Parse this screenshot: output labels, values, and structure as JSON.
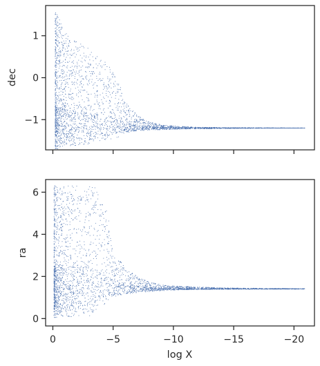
{
  "chart_data": [
    {
      "type": "scatter",
      "marker_color": "#4c72b0",
      "xlabel": "",
      "ylabel": "dec",
      "xlim": [
        0.6,
        -21.7
      ],
      "ylim": [
        -1.72,
        1.72
      ],
      "xticks": [
        0,
        -5,
        -10,
        -15,
        -20
      ],
      "xtick_labels_visible": false,
      "yticks": [
        1,
        0,
        -1
      ],
      "ytick_labels": [
        "1",
        "0",
        "−1"
      ],
      "grid": false,
      "x_range": [
        -0.2,
        -20.9
      ],
      "envelope_x": [
        -0.3,
        -0.6,
        -1.0,
        -1.5,
        -2.0,
        -2.5,
        -3.0,
        -3.5,
        -4.0,
        -4.5,
        -5.0,
        -5.5,
        -6.0,
        -7.0,
        -8.0,
        -9.0,
        -10.0,
        -12.0,
        -15.0,
        -20.8
      ],
      "envelope_upper": [
        1.55,
        1.35,
        1.1,
        0.95,
        0.85,
        0.8,
        0.7,
        0.55,
        0.45,
        0.35,
        0.15,
        -0.1,
        -0.55,
        -0.9,
        -1.05,
        -1.12,
        -1.15,
        -1.18,
        -1.19,
        -1.2
      ],
      "envelope_lower": [
        -1.35,
        -1.45,
        -1.5,
        -1.55,
        -1.5,
        -1.45,
        -1.45,
        -1.42,
        -1.4,
        -1.38,
        -1.35,
        -1.33,
        -1.3,
        -1.27,
        -1.25,
        -1.24,
        -1.23,
        -1.22,
        -1.21,
        -1.2
      ],
      "asymptote_y": -1.2
    },
    {
      "type": "scatter",
      "marker_color": "#4c72b0",
      "xlabel": "log X",
      "ylabel": "ra",
      "xlim": [
        0.6,
        -21.7
      ],
      "ylim": [
        -0.35,
        6.6
      ],
      "xticks": [
        0,
        -5,
        -10,
        -15,
        -20
      ],
      "xtick_labels": [
        "0",
        "−5",
        "−10",
        "−15",
        "−20"
      ],
      "yticks": [
        0,
        2,
        4,
        6
      ],
      "ytick_labels": [
        "0",
        "2",
        "4",
        "6"
      ],
      "grid": false,
      "x_range": [
        -0.1,
        -20.9
      ],
      "envelope_x": [
        -0.3,
        -0.6,
        -1.0,
        -1.5,
        -2.0,
        -2.5,
        -3.0,
        -3.5,
        -4.0,
        -4.5,
        -5.0,
        -5.5,
        -6.0,
        -7.0,
        -8.0,
        -9.0,
        -10.0,
        -12.0,
        -15.0,
        -20.8
      ],
      "envelope_upper": [
        6.3,
        6.3,
        6.3,
        6.3,
        6.3,
        6.3,
        6.3,
        6.3,
        5.6,
        5.3,
        3.0,
        2.8,
        2.4,
        2.0,
        1.75,
        1.6,
        1.55,
        1.5,
        1.45,
        1.42
      ],
      "envelope_lower": [
        0.05,
        0.05,
        0.05,
        0.05,
        0.05,
        0.05,
        0.1,
        0.3,
        0.7,
        0.9,
        1.0,
        1.1,
        1.15,
        1.22,
        1.28,
        1.32,
        1.35,
        1.38,
        1.4,
        1.41
      ],
      "asymptote_y": 1.4
    }
  ]
}
